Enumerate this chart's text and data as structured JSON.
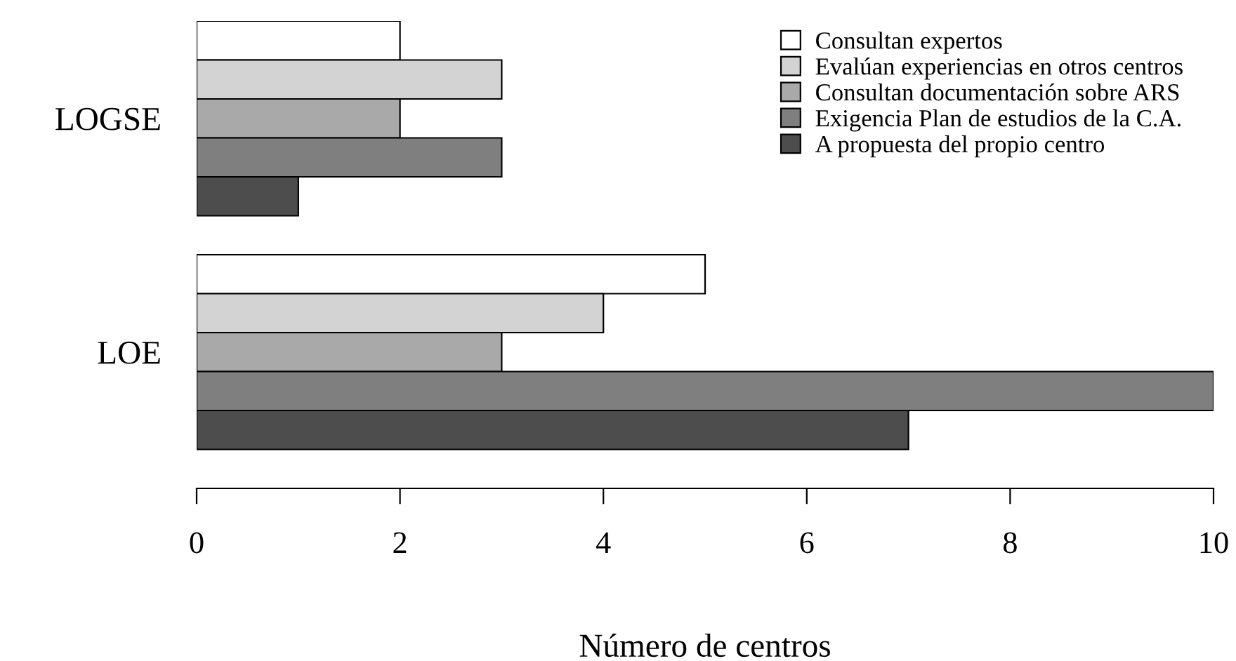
{
  "chart_data": {
    "type": "bar",
    "orientation": "horizontal",
    "xlabel": "Número de centros",
    "categories": [
      "LOGSE",
      "LOE"
    ],
    "series": [
      {
        "name": "Consultan expertos",
        "color": "#ffffff",
        "values": [
          2,
          5
        ]
      },
      {
        "name": "Evalúan experiencias en otros centros",
        "color": "#d3d3d3",
        "values": [
          3,
          4
        ]
      },
      {
        "name": "Consultan documentación sobre ARS",
        "color": "#a9a9a9",
        "values": [
          2,
          3
        ]
      },
      {
        "name": "Exigencia Plan de estudios de la C.A.",
        "color": "#7f7f7f",
        "values": [
          3,
          10
        ]
      },
      {
        "name": "A propuesta del propio centro",
        "color": "#4d4d4d",
        "values": [
          1,
          7
        ]
      }
    ],
    "xlim": [
      0,
      10
    ],
    "xticks": [
      0,
      2,
      4,
      6,
      8,
      10
    ],
    "grid": false,
    "legend": "top right"
  }
}
